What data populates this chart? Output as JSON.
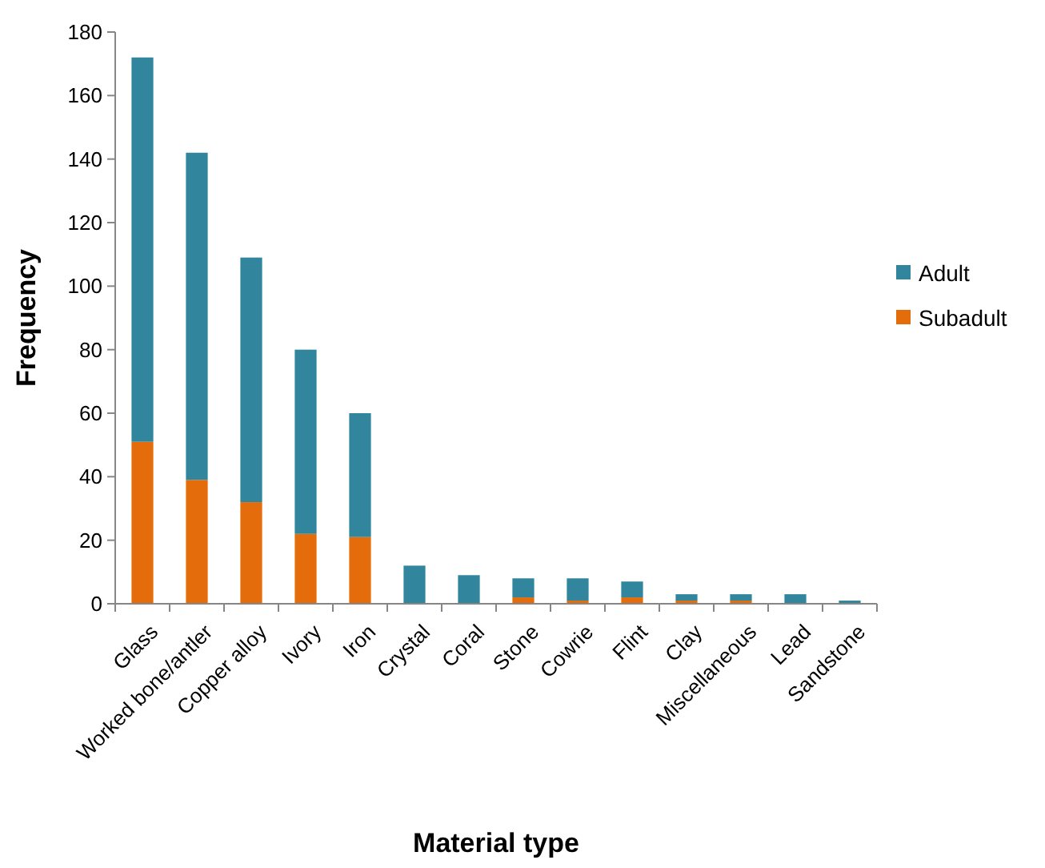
{
  "chart_data": {
    "type": "bar",
    "stacked": true,
    "xlabel": "Material type",
    "ylabel": "Frequency",
    "categories": [
      "Glass",
      "Worked bone/antler",
      "Copper alloy",
      "Ivory",
      "Iron",
      "Crystal",
      "Coral",
      "Stone",
      "Cowrie",
      "Flint",
      "Clay",
      "Miscellaneous",
      "Lead",
      "Sandstone"
    ],
    "series": [
      {
        "name": "Subadult",
        "color": "#e46c0a",
        "values": [
          51,
          39,
          32,
          22,
          21,
          0,
          0,
          2,
          1,
          2,
          1,
          1,
          0,
          0
        ]
      },
      {
        "name": "Adult",
        "color": "#31859c",
        "values": [
          121,
          103,
          77,
          58,
          39,
          12,
          9,
          6,
          7,
          5,
          2,
          2,
          3,
          1
        ]
      }
    ],
    "ylim": [
      0,
      180
    ],
    "yticks": [
      0,
      20,
      40,
      60,
      80,
      100,
      120,
      140,
      160,
      180
    ],
    "grid": false,
    "legend": "right"
  }
}
